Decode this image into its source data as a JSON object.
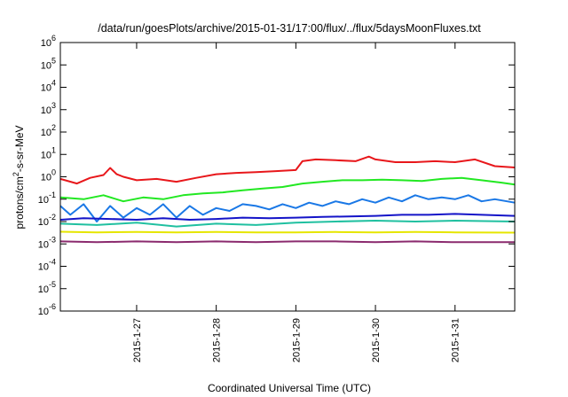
{
  "chart_data": {
    "type": "line",
    "title": "/data/run/goesPlots/archive/2015-01-31/17:00/flux/../flux/5daysMoonFluxes.txt",
    "xlabel": "Coordinated Universal Time (UTC)",
    "ylabel": {
      "base": "protons/cm",
      "sup": "2",
      "rest": "-s-sr-MeV"
    },
    "yscale": "log",
    "ylim": [
      -6,
      6
    ],
    "y_ticks": [
      {
        "base": "10",
        "exp": "6",
        "v": 6
      },
      {
        "base": "10",
        "exp": "5",
        "v": 5
      },
      {
        "base": "10",
        "exp": "4",
        "v": 4
      },
      {
        "base": "10",
        "exp": "3",
        "v": 3
      },
      {
        "base": "10",
        "exp": "2",
        "v": 2
      },
      {
        "base": "10",
        "exp": "1",
        "v": 1
      },
      {
        "base": "10",
        "exp": "0",
        "v": 0
      },
      {
        "base": "10",
        "exp": "-1",
        "v": -1
      },
      {
        "base": "10",
        "exp": "-2",
        "v": -2
      },
      {
        "base": "10",
        "exp": "-3",
        "v": -3
      },
      {
        "base": "10",
        "exp": "-4",
        "v": -4
      },
      {
        "base": "10",
        "exp": "-5",
        "v": -5
      },
      {
        "base": "10",
        "exp": "-6",
        "v": -6
      }
    ],
    "x_range_days": [
      "2015-01-26T01:00",
      "2015-01-31T18:00"
    ],
    "x_ticks": [
      {
        "label": "2015-1-27",
        "date": "2015-01-27"
      },
      {
        "label": "2015-1-28",
        "date": "2015-01-28"
      },
      {
        "label": "2015-1-29",
        "date": "2015-01-29"
      },
      {
        "label": "2015-1-30",
        "date": "2015-01-30"
      },
      {
        "label": "2015-1-31",
        "date": "2015-01-31"
      }
    ],
    "grid": false,
    "legend": "none",
    "series": [
      {
        "color": "#e8171b",
        "x": [
          "2015-01-26T01:00",
          "2015-01-26T06:00",
          "2015-01-26T10:00",
          "2015-01-26T14:00",
          "2015-01-26T16:00",
          "2015-01-26T18:00",
          "2015-01-26T20:00",
          "2015-01-27T00:00",
          "2015-01-27T06:00",
          "2015-01-27T12:00",
          "2015-01-27T18:00",
          "2015-01-28T00:00",
          "2015-01-28T06:00",
          "2015-01-28T12:00",
          "2015-01-28T18:00",
          "2015-01-29T00:00",
          "2015-01-29T02:00",
          "2015-01-29T06:00",
          "2015-01-29T12:00",
          "2015-01-29T18:00",
          "2015-01-29T22:00",
          "2015-01-30T00:00",
          "2015-01-30T06:00",
          "2015-01-30T12:00",
          "2015-01-30T18:00",
          "2015-01-31T00:00",
          "2015-01-31T06:00",
          "2015-01-31T12:00",
          "2015-01-31T18:00"
        ],
        "y": [
          0.8,
          0.5,
          0.9,
          1.2,
          2.5,
          1.3,
          1.0,
          0.7,
          0.8,
          0.6,
          0.9,
          1.3,
          1.5,
          1.6,
          1.8,
          2.0,
          5.0,
          6.0,
          5.5,
          5.0,
          8.0,
          6.0,
          4.5,
          4.5,
          5.0,
          4.5,
          6.0,
          3.0,
          2.6
        ]
      },
      {
        "color": "#22e822",
        "x": [
          "2015-01-26T01:00",
          "2015-01-26T08:00",
          "2015-01-26T14:00",
          "2015-01-26T20:00",
          "2015-01-27T02:00",
          "2015-01-27T08:00",
          "2015-01-27T14:00",
          "2015-01-27T20:00",
          "2015-01-28T02:00",
          "2015-01-28T08:00",
          "2015-01-28T14:00",
          "2015-01-28T20:00",
          "2015-01-29T02:00",
          "2015-01-29T08:00",
          "2015-01-29T14:00",
          "2015-01-29T20:00",
          "2015-01-30T02:00",
          "2015-01-30T08:00",
          "2015-01-30T14:00",
          "2015-01-30T20:00",
          "2015-01-31T02:00",
          "2015-01-31T08:00",
          "2015-01-31T14:00",
          "2015-01-31T18:00"
        ],
        "y": [
          0.12,
          0.1,
          0.15,
          0.08,
          0.12,
          0.1,
          0.15,
          0.18,
          0.2,
          0.25,
          0.3,
          0.35,
          0.5,
          0.6,
          0.7,
          0.7,
          0.75,
          0.7,
          0.65,
          0.8,
          0.9,
          0.7,
          0.55,
          0.45
        ]
      },
      {
        "color": "#1a78e6",
        "x": [
          "2015-01-26T01:00",
          "2015-01-26T04:00",
          "2015-01-26T08:00",
          "2015-01-26T12:00",
          "2015-01-26T16:00",
          "2015-01-26T20:00",
          "2015-01-27T00:00",
          "2015-01-27T04:00",
          "2015-01-27T08:00",
          "2015-01-27T12:00",
          "2015-01-27T16:00",
          "2015-01-27T20:00",
          "2015-01-28T00:00",
          "2015-01-28T04:00",
          "2015-01-28T08:00",
          "2015-01-28T12:00",
          "2015-01-28T16:00",
          "2015-01-28T20:00",
          "2015-01-29T00:00",
          "2015-01-29T04:00",
          "2015-01-29T08:00",
          "2015-01-29T12:00",
          "2015-01-29T16:00",
          "2015-01-29T20:00",
          "2015-01-30T00:00",
          "2015-01-30T04:00",
          "2015-01-30T08:00",
          "2015-01-30T12:00",
          "2015-01-30T16:00",
          "2015-01-30T20:00",
          "2015-01-31T00:00",
          "2015-01-31T04:00",
          "2015-01-31T08:00",
          "2015-01-31T12:00",
          "2015-01-31T18:00"
        ],
        "y": [
          0.05,
          0.02,
          0.06,
          0.01,
          0.05,
          0.015,
          0.04,
          0.02,
          0.06,
          0.015,
          0.05,
          0.02,
          0.04,
          0.03,
          0.06,
          0.05,
          0.035,
          0.06,
          0.04,
          0.07,
          0.05,
          0.08,
          0.06,
          0.1,
          0.07,
          0.12,
          0.08,
          0.15,
          0.1,
          0.12,
          0.1,
          0.15,
          0.08,
          0.1,
          0.07
        ]
      },
      {
        "color": "#1414c8",
        "x": [
          "2015-01-26T01:00",
          "2015-01-26T08:00",
          "2015-01-26T16:00",
          "2015-01-27T00:00",
          "2015-01-27T08:00",
          "2015-01-27T16:00",
          "2015-01-28T00:00",
          "2015-01-28T08:00",
          "2015-01-28T16:00",
          "2015-01-29T00:00",
          "2015-01-29T08:00",
          "2015-01-29T16:00",
          "2015-01-30T00:00",
          "2015-01-30T08:00",
          "2015-01-30T16:00",
          "2015-01-31T00:00",
          "2015-01-31T08:00",
          "2015-01-31T18:00"
        ],
        "y": [
          0.012,
          0.014,
          0.013,
          0.012,
          0.014,
          0.012,
          0.013,
          0.015,
          0.014,
          0.015,
          0.016,
          0.017,
          0.018,
          0.02,
          0.02,
          0.022,
          0.02,
          0.018
        ]
      },
      {
        "color": "#20c0a0",
        "x": [
          "2015-01-26T01:00",
          "2015-01-26T12:00",
          "2015-01-27T00:00",
          "2015-01-27T12:00",
          "2015-01-28T00:00",
          "2015-01-28T12:00",
          "2015-01-29T00:00",
          "2015-01-29T12:00",
          "2015-01-30T00:00",
          "2015-01-30T12:00",
          "2015-01-31T00:00",
          "2015-01-31T18:00"
        ],
        "y": [
          0.008,
          0.007,
          0.009,
          0.006,
          0.008,
          0.007,
          0.009,
          0.01,
          0.011,
          0.01,
          0.011,
          0.01
        ]
      },
      {
        "color": "#e6e600",
        "x": [
          "2015-01-26T01:00",
          "2015-01-26T12:00",
          "2015-01-27T00:00",
          "2015-01-27T12:00",
          "2015-01-28T00:00",
          "2015-01-28T12:00",
          "2015-01-29T00:00",
          "2015-01-29T12:00",
          "2015-01-30T00:00",
          "2015-01-30T12:00",
          "2015-01-31T00:00",
          "2015-01-31T18:00"
        ],
        "y": [
          0.0035,
          0.0033,
          0.0034,
          0.0033,
          0.0034,
          0.0033,
          0.0033,
          0.0034,
          0.0033,
          0.0034,
          0.0033,
          0.0032
        ]
      },
      {
        "color": "#8b2a6e",
        "x": [
          "2015-01-26T01:00",
          "2015-01-26T12:00",
          "2015-01-27T00:00",
          "2015-01-27T12:00",
          "2015-01-28T00:00",
          "2015-01-28T12:00",
          "2015-01-29T00:00",
          "2015-01-29T12:00",
          "2015-01-30T00:00",
          "2015-01-30T12:00",
          "2015-01-31T00:00",
          "2015-01-31T18:00"
        ],
        "y": [
          0.0013,
          0.0012,
          0.0013,
          0.0012,
          0.0013,
          0.0012,
          0.0013,
          0.0013,
          0.0012,
          0.0013,
          0.0012,
          0.0012
        ]
      }
    ]
  }
}
